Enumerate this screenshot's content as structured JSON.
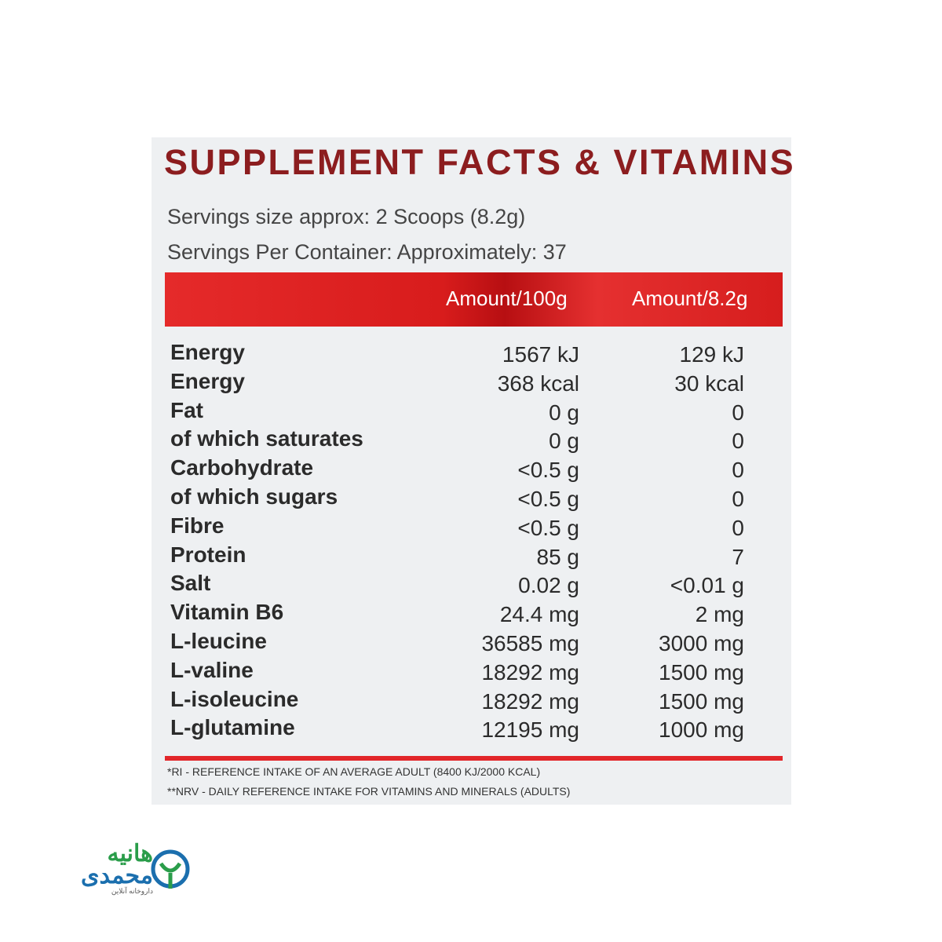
{
  "label": {
    "title": "SUPPLEMENT FACTS & VITAMINS",
    "serving_lines": [
      "Servings size approx: 2 Scoops (8.2g)",
      "Servings Per Container: Approximately: 37"
    ],
    "table": {
      "header": [
        "Amount/100g",
        "Amount/8.2g"
      ],
      "rows": [
        [
          "Energy",
          "1567 kJ",
          "129 kJ"
        ],
        [
          "Energy",
          "368 kcal",
          "30 kcal"
        ],
        [
          "Fat",
          "0 g",
          "0"
        ],
        [
          "of which saturates",
          "0 g",
          "0"
        ],
        [
          "Carbohydrate",
          "<0.5 g",
          "0"
        ],
        [
          "of which sugars",
          "<0.5 g",
          "0"
        ],
        [
          "Fibre",
          "<0.5 g",
          "0"
        ],
        [
          "Protein",
          "85 g",
          "7"
        ],
        [
          "Salt",
          "0.02 g",
          "<0.01 g"
        ],
        [
          "Vitamin B6",
          "24.4 mg",
          "2 mg"
        ],
        [
          "L-leucine",
          "36585 mg",
          "3000 mg"
        ],
        [
          "L-valine",
          "18292 mg",
          "1500 mg"
        ],
        [
          "L-isoleucine",
          "18292 mg",
          "1500 mg"
        ],
        [
          "L-glutamine",
          "12195 mg",
          "1000 mg"
        ]
      ]
    },
    "footnotes": [
      "*RI - REFERENCE INTAKE OF AN AVERAGE ADULT (8400 KJ/2000 KCAL)",
      "**NRV - DAILY REFERENCE INTAKE FOR VITAMINS AND MINERALS (ADULTS)"
    ]
  },
  "logo": {
    "name_line1": "هانیه",
    "name_line2": "محمدی",
    "tagline": "داروخانه آنلاین"
  }
}
